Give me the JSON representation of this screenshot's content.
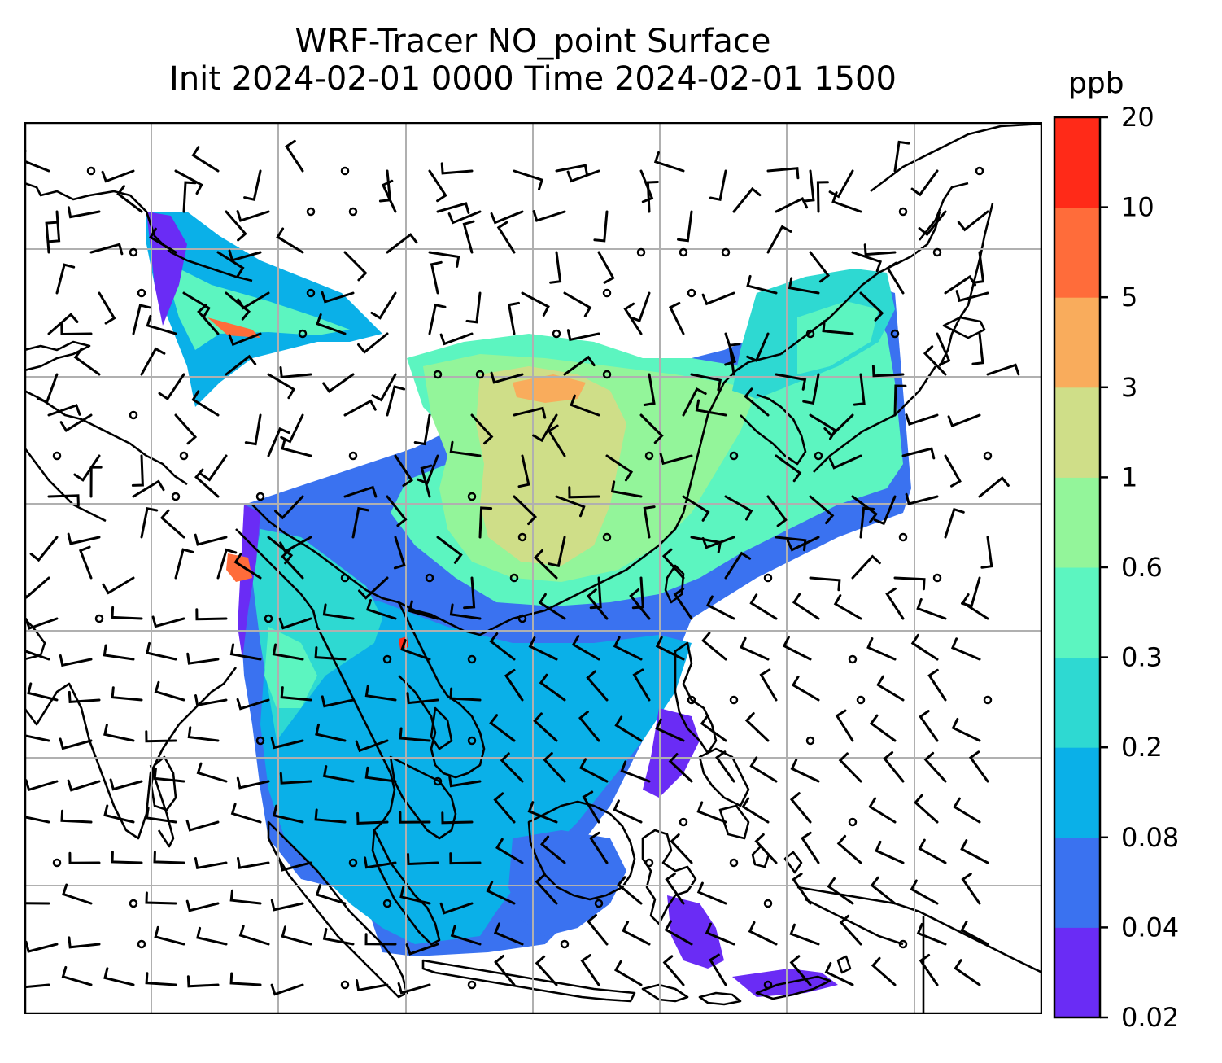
{
  "title": {
    "line1": "WRF-Tracer NO_point Surface",
    "line2": "Init 2024-02-01 0000 Time 2024-02-01 1500"
  },
  "colorbar": {
    "unit": "ppb",
    "levels": [
      "0.02",
      "0.04",
      "0.08",
      "0.2",
      "0.3",
      "0.6",
      "1",
      "3",
      "5",
      "10",
      "20"
    ],
    "colors": [
      "#6a2cf5",
      "#3a72f0",
      "#0ab0e8",
      "#2ed9d2",
      "#5cf5c0",
      "#93f59a",
      "#cfde88",
      "#f9ac5c",
      "#ff6c3a",
      "#ff2a18"
    ]
  },
  "map": {
    "gridlines": true,
    "coastline_color": "#000000",
    "gridline_color": "#b0b0b0",
    "wind_barbs": true
  }
}
